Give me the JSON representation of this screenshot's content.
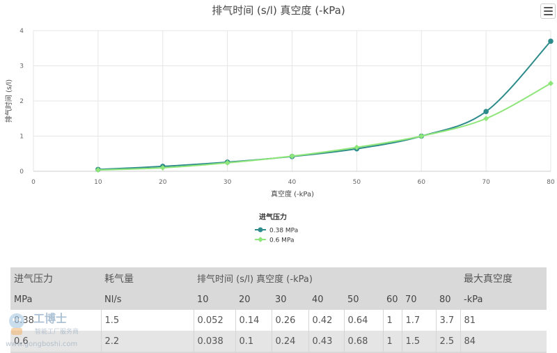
{
  "chart_data": {
    "type": "line",
    "title": "排气时间 (s/l) 真空度 (-kPa)",
    "xlabel": "真空度 (-kPa)",
    "ylabel": "排气时间 (s/l)",
    "xlim": [
      0,
      80
    ],
    "ylim": [
      0,
      4
    ],
    "x_ticks": [
      "0",
      "10",
      "20",
      "30",
      "40",
      "50",
      "60",
      "70",
      "80"
    ],
    "y_ticks": [
      "0",
      "1",
      "2",
      "3",
      "4"
    ],
    "grid": true,
    "legend_title": "进气压力",
    "legend_position": "bottom-center",
    "x": [
      10,
      20,
      30,
      40,
      50,
      60,
      70,
      80
    ],
    "series": [
      {
        "name": "0.38 MPa",
        "color": "#2e8b8b",
        "marker": "circle",
        "values": [
          0.052,
          0.14,
          0.26,
          0.42,
          0.64,
          1,
          1.7,
          3.7
        ]
      },
      {
        "name": "0.6 MPa",
        "color": "#8ee67a",
        "marker": "diamond",
        "values": [
          0.038,
          0.1,
          0.24,
          0.43,
          0.68,
          1,
          1.5,
          2.5
        ]
      }
    ]
  },
  "table": {
    "headers": {
      "pressure": "进气压力",
      "consumption": "耗气量",
      "evac": "排气时间 (s/l) 真空度 (-kPa)",
      "max": "最大真空度"
    },
    "units": {
      "pressure": "MPa",
      "consumption": "Nl/s",
      "levels": [
        "10",
        "20",
        "30",
        "40",
        "50",
        "60",
        "70",
        "80"
      ],
      "max": "-kPa"
    },
    "rows": [
      {
        "pressure": "0.38",
        "consumption": "1.5",
        "times": [
          "0.052",
          "0.14",
          "0.26",
          "0.42",
          "0.64",
          "1",
          "1.7",
          "3.7"
        ],
        "max": "81"
      },
      {
        "pressure": "0.6",
        "consumption": "2.2",
        "times": [
          "0.038",
          "0.1",
          "0.24",
          "0.43",
          "0.68",
          "1",
          "1.5",
          "2.5"
        ],
        "max": "84"
      }
    ]
  },
  "watermark": {
    "brand": "工博士",
    "tagline": "智能工厂服务商",
    "url": "www.gongboshi.com"
  },
  "icons": {
    "menu": "hamburger-menu-icon"
  }
}
